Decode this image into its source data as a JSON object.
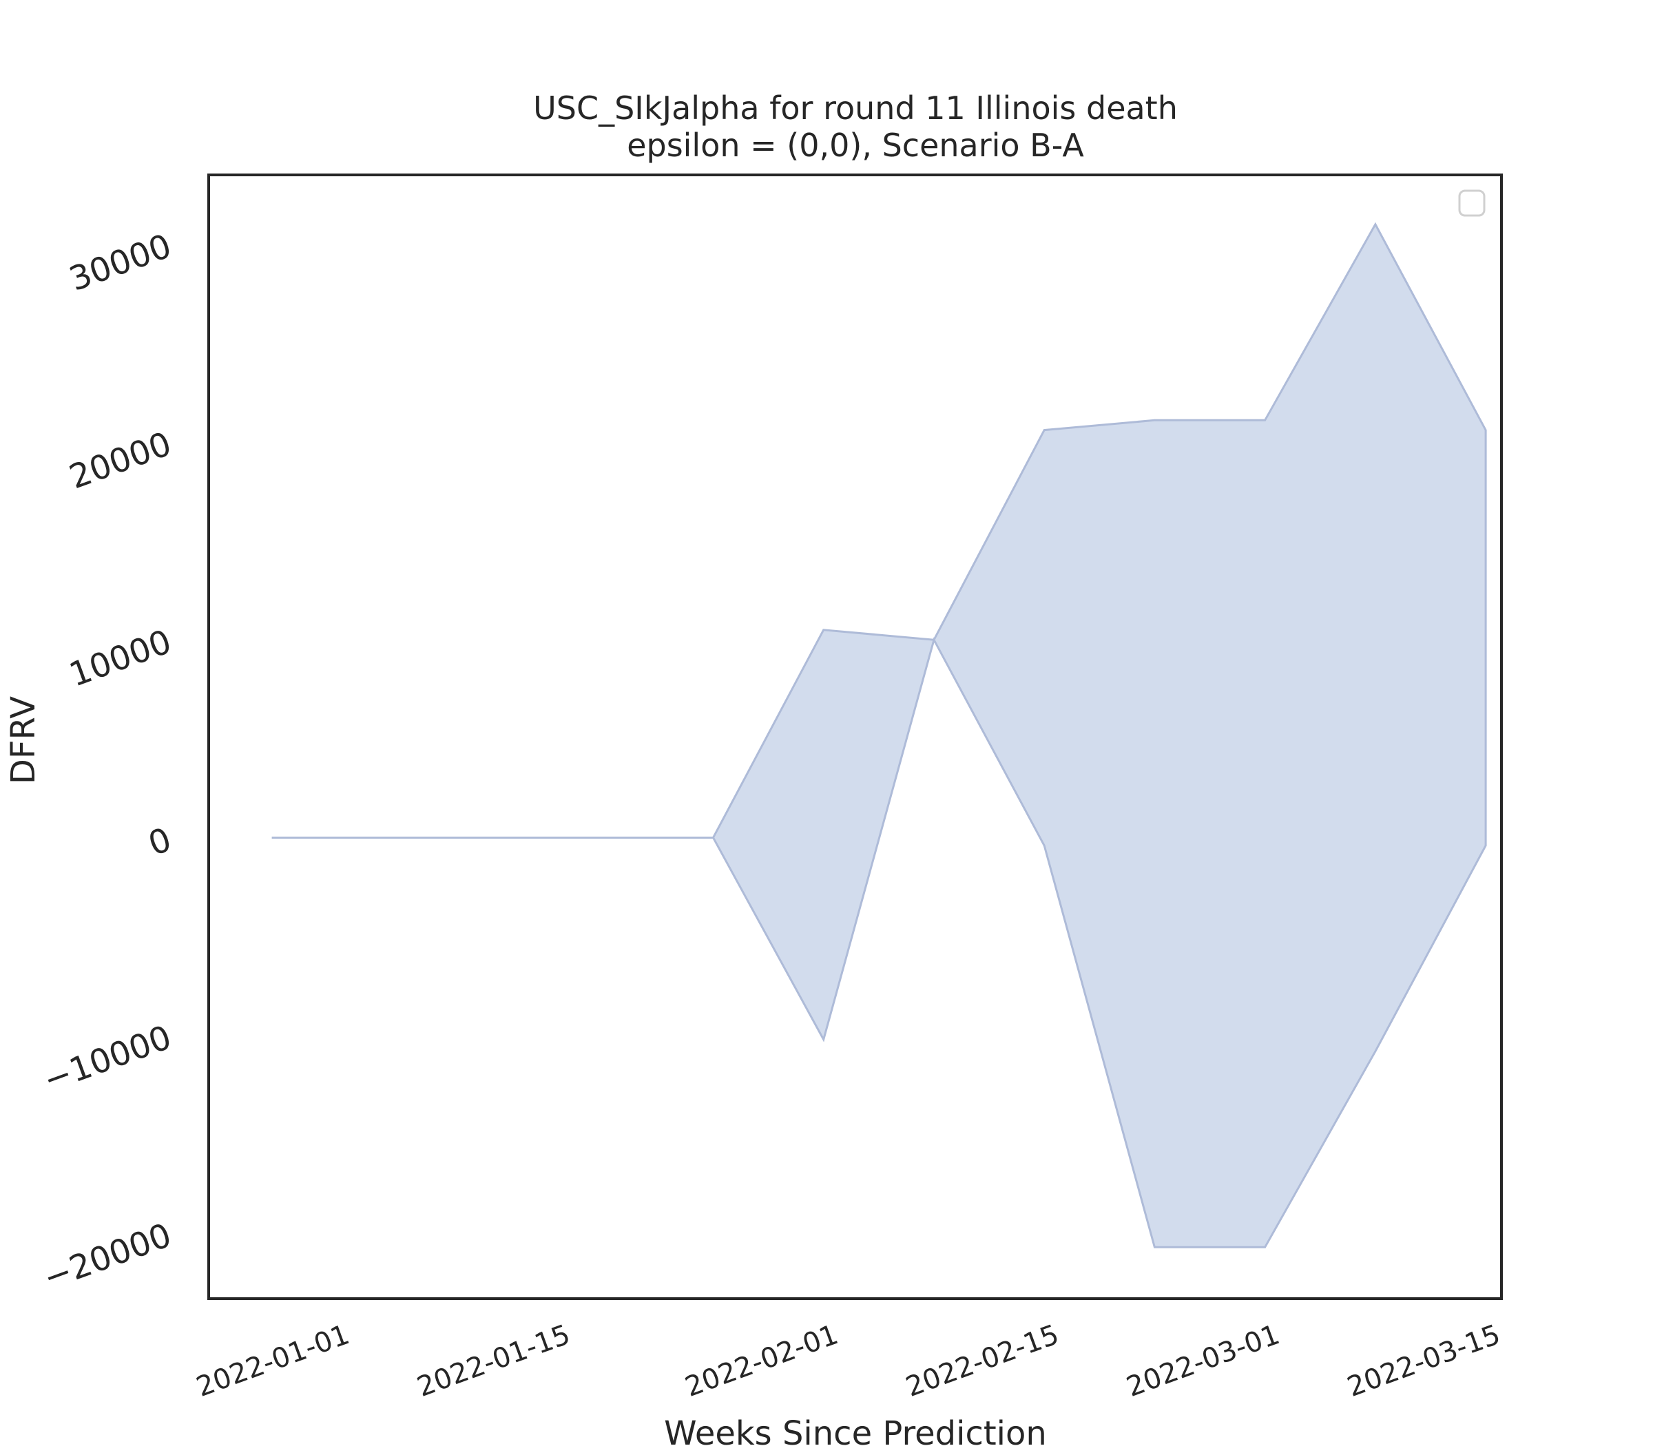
{
  "chart_data": {
    "type": "area",
    "title_line1": "USC_SIkJalpha for round 11 Illinois death",
    "title_line2": "epsilon = (0,0), Scenario B-A",
    "xlabel": "Weeks Since Prediction",
    "ylabel": "DFRV",
    "x_tick_labels": [
      "2022-01-01",
      "2022-01-15",
      "2022-02-01",
      "2022-02-15",
      "2022-03-01",
      "2022-03-15"
    ],
    "y_tick_labels": [
      "−20000",
      "−10000",
      "0",
      "10000",
      "20000",
      "30000"
    ],
    "y_ticks": [
      -20000,
      -10000,
      0,
      10000,
      20000,
      30000
    ],
    "ylim": [
      -23300,
      33500
    ],
    "xlim": [
      "2021-12-24",
      "2022-03-16"
    ],
    "band_color": "#b7c6e2",
    "band_line_color": "#aebbd8",
    "legend": "top-right",
    "grid": false,
    "series": [
      {
        "x": [
          "2021-12-28",
          "2022-01-04",
          "2022-01-11",
          "2022-01-18",
          "2022-01-25",
          "2022-02-01",
          "2022-02-08",
          "2022-02-15",
          "2022-02-22",
          "2022-03-01",
          "2022-03-08",
          "2022-03-15"
        ],
        "lower": [
          0,
          0,
          0,
          0,
          0,
          -10200,
          10000,
          -400,
          -20700,
          -20700,
          -10800,
          -400
        ],
        "upper": [
          0,
          0,
          0,
          0,
          0,
          10500,
          10000,
          20600,
          21100,
          21100,
          31000,
          20600
        ]
      }
    ]
  }
}
